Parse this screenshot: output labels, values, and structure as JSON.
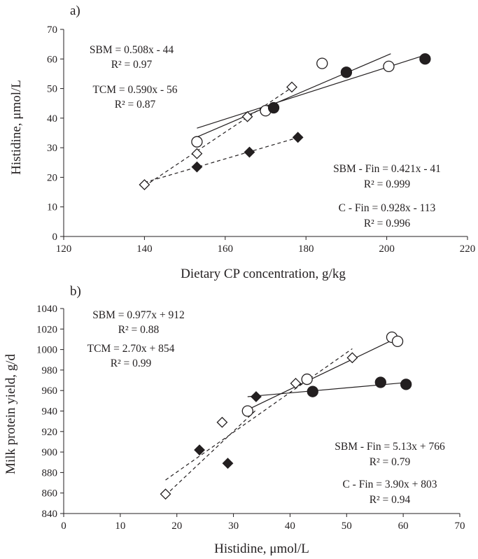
{
  "chart_data": [
    {
      "panel_label": "a)",
      "type": "scatter",
      "xlabel": "Dietary CP concentration, g/kg",
      "ylabel": "Histidine, μmol/L",
      "xlim": [
        120,
        220
      ],
      "ylim": [
        0,
        70
      ],
      "x_ticks": [
        "120",
        "140",
        "160",
        "180",
        "200",
        "220"
      ],
      "y_ticks": [
        "0",
        "10",
        "20",
        "30",
        "40",
        "50",
        "60",
        "70"
      ],
      "grid": false,
      "series": [
        {
          "marker": "open-circle",
          "points": [
            [
              153,
              32
            ],
            [
              170,
              42.5
            ],
            [
              184,
              58.5
            ],
            [
              200.5,
              57.5
            ]
          ]
        },
        {
          "marker": "filled-circle",
          "points": [
            [
              172,
              43.5
            ],
            [
              190,
              55.5
            ],
            [
              209.5,
              60
            ]
          ]
        },
        {
          "marker": "open-diamond",
          "points": [
            [
              140,
              17.5
            ],
            [
              153,
              28
            ],
            [
              165.5,
              40.5
            ],
            [
              176.5,
              50.5
            ]
          ]
        },
        {
          "marker": "filled-diamond",
          "points": [
            [
              153,
              23.5
            ],
            [
              166,
              28.5
            ],
            [
              178,
              33.5
            ]
          ]
        }
      ],
      "fits": [
        {
          "style": "solid",
          "x_range": [
            153,
            201
          ],
          "equation": "SBM = 0.508x - 44",
          "r2": "R² = 0.97"
        },
        {
          "style": "solid",
          "x_range": [
            153,
            209
          ],
          "equation": "SBM - Fin = 0.421x - 41",
          "r2": "R² = 0.999"
        },
        {
          "style": "dashed",
          "x_range": [
            140,
            176.5
          ],
          "equation": "TCM = 0.590x - 56",
          "r2": "R² = 0.87"
        },
        {
          "style": "dashed",
          "x_range": [
            140,
            178
          ],
          "equation": "C - Fin = 0.928x - 113",
          "r2": "R² = 0.996"
        }
      ]
    },
    {
      "panel_label": "b)",
      "type": "scatter",
      "xlabel": "Histidine, μmol/L",
      "ylabel": "Milk protein yield, g/d",
      "xlim": [
        0,
        70
      ],
      "ylim": [
        840,
        1040
      ],
      "x_ticks": [
        "0",
        "10",
        "20",
        "30",
        "40",
        "50",
        "60",
        "70"
      ],
      "y_ticks": [
        "840",
        "860",
        "880",
        "900",
        "920",
        "940",
        "960",
        "980",
        "1000",
        "1020",
        "1040"
      ],
      "grid": false,
      "series": [
        {
          "marker": "open-circle",
          "points": [
            [
              32.5,
              940
            ],
            [
              43,
              971
            ],
            [
              58,
              1012
            ],
            [
              59,
              1008
            ]
          ]
        },
        {
          "marker": "filled-circle",
          "points": [
            [
              44,
              959
            ],
            [
              56,
              968
            ],
            [
              60.5,
              966
            ]
          ]
        },
        {
          "marker": "open-diamond",
          "points": [
            [
              18,
              859
            ],
            [
              28,
              929
            ],
            [
              41,
              967
            ],
            [
              51,
              992
            ]
          ]
        },
        {
          "marker": "filled-diamond",
          "points": [
            [
              24,
              902
            ],
            [
              29,
              889
            ],
            [
              34,
              954
            ]
          ]
        }
      ],
      "fits": [
        {
          "style": "solid",
          "x_range": [
            32.5,
            59
          ],
          "equation": "SBM = 0.977x + 912",
          "r2": "R² = 0.88"
        },
        {
          "style": "solid",
          "x_range": [
            32.5,
            60.5
          ],
          "equation": "SBM - Fin = 5.13x + 766",
          "r2": "R² = 0.79"
        },
        {
          "style": "dashed",
          "x_range": [
            18,
            51
          ],
          "equation": "TCM = 2.70x + 854",
          "r2": "R² = 0.99"
        },
        {
          "style": "dashed",
          "x_range": [
            18,
            34
          ],
          "equation": "C - Fin = 3.90x + 803",
          "r2": "R² = 0.94"
        }
      ]
    }
  ]
}
